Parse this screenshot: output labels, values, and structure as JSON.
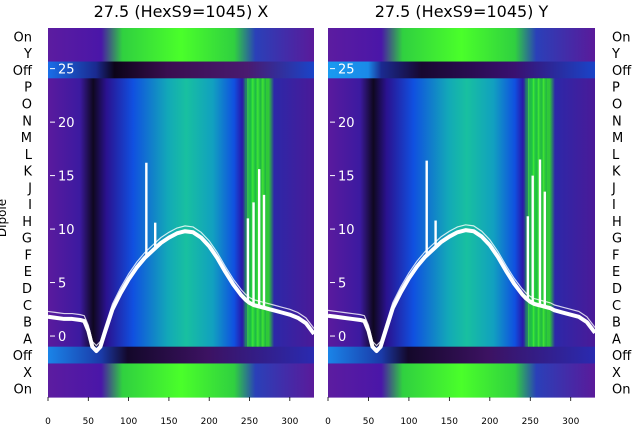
{
  "chart_data": [
    {
      "type": "heatmap",
      "title": "27.5 (HexS9=1045) X",
      "ylabel": "Dipole",
      "xlim": [
        0,
        330
      ],
      "ylim": [
        -5.7,
        28.8
      ],
      "xticks": [
        0,
        50,
        100,
        150,
        200,
        250,
        300
      ],
      "yticks": [
        0,
        5,
        10,
        15,
        20,
        25
      ],
      "row_labels": [
        "On",
        "Y",
        "Off",
        "P",
        "O",
        "N",
        "M",
        "L",
        "K",
        "J",
        "I",
        "H",
        "G",
        "F",
        "E",
        "D",
        "C",
        "B",
        "A",
        "Off",
        "X",
        "On"
      ],
      "trace": {
        "x": [
          0,
          10,
          20,
          30,
          40,
          45,
          50,
          55,
          60,
          65,
          70,
          80,
          90,
          100,
          110,
          120,
          130,
          140,
          150,
          160,
          170,
          180,
          190,
          200,
          210,
          220,
          230,
          240,
          245,
          250,
          255,
          260,
          265,
          270,
          275,
          280,
          290,
          300,
          310,
          320,
          330
        ],
        "y": [
          1.8,
          1.7,
          1.6,
          1.6,
          1.5,
          1.4,
          0.5,
          -1.0,
          -1.4,
          -1.0,
          0.2,
          2.5,
          4.0,
          5.3,
          6.4,
          7.3,
          8.0,
          8.7,
          9.2,
          9.6,
          9.8,
          9.7,
          9.2,
          8.4,
          7.3,
          6.0,
          4.8,
          3.8,
          3.4,
          3.1,
          2.9,
          2.8,
          2.7,
          2.6,
          2.5,
          2.4,
          2.2,
          2.0,
          1.7,
          1.2,
          0.2
        ]
      },
      "spikes": [
        {
          "x": 122,
          "top": 16.2
        },
        {
          "x": 133,
          "top": 10.6
        },
        {
          "x": 248,
          "top": 11.0
        },
        {
          "x": 255,
          "top": 12.5
        },
        {
          "x": 262,
          "top": 15.6
        },
        {
          "x": 268,
          "top": 13.2
        }
      ],
      "bright_band": [
        244,
        272
      ]
    },
    {
      "type": "heatmap",
      "title": "27.5 (HexS9=1045) Y",
      "xlim": [
        0,
        330
      ],
      "ylim": [
        -5.7,
        28.8
      ],
      "xticks": [
        0,
        50,
        100,
        150,
        200,
        250,
        300
      ],
      "yticks": [
        0,
        5,
        10,
        15,
        20,
        25
      ],
      "row_labels": [
        "On",
        "Y",
        "Off",
        "P",
        "O",
        "N",
        "M",
        "L",
        "K",
        "J",
        "I",
        "H",
        "G",
        "F",
        "E",
        "D",
        "C",
        "B",
        "A",
        "Off",
        "X",
        "On"
      ],
      "trace": {
        "x": [
          0,
          10,
          20,
          30,
          40,
          45,
          50,
          55,
          60,
          65,
          70,
          80,
          90,
          100,
          110,
          120,
          130,
          140,
          150,
          160,
          170,
          180,
          190,
          200,
          210,
          220,
          230,
          240,
          245,
          250,
          255,
          260,
          265,
          270,
          275,
          280,
          290,
          300,
          310,
          320,
          330
        ],
        "y": [
          1.9,
          1.8,
          1.7,
          1.6,
          1.5,
          1.4,
          0.5,
          -1.0,
          -1.4,
          -1.0,
          0.2,
          2.6,
          4.1,
          5.4,
          6.5,
          7.4,
          8.1,
          8.8,
          9.3,
          9.7,
          9.9,
          9.8,
          9.3,
          8.5,
          7.4,
          6.1,
          4.9,
          3.9,
          3.5,
          3.2,
          3.0,
          2.9,
          2.8,
          2.7,
          2.6,
          2.4,
          2.2,
          2.0,
          1.8,
          1.3,
          0.3
        ]
      },
      "spikes": [
        {
          "x": 122,
          "top": 16.4
        },
        {
          "x": 133,
          "top": 10.8
        },
        {
          "x": 247,
          "top": 11.2
        },
        {
          "x": 253,
          "top": 15.0
        },
        {
          "x": 262,
          "top": 16.5
        },
        {
          "x": 268,
          "top": 13.5
        }
      ],
      "bright_band": [
        244,
        272
      ]
    }
  ]
}
